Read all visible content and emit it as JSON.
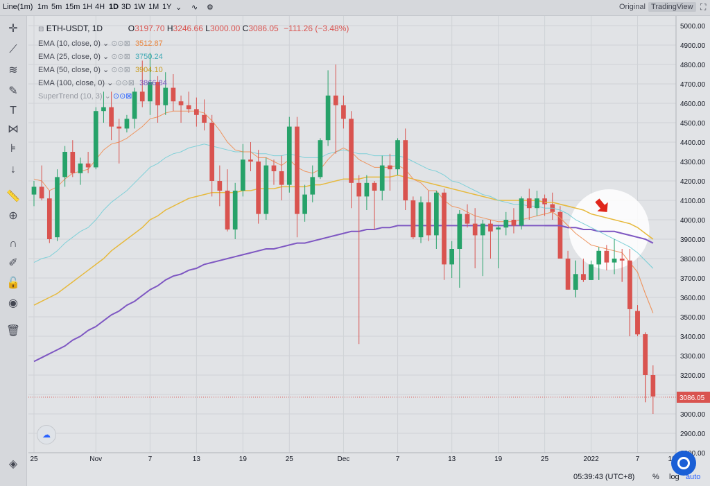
{
  "toolbar": {
    "chart_type": "Line(1m)",
    "timeframes": [
      "1m",
      "5m",
      "15m",
      "1H",
      "4H",
      "1D",
      "3D",
      "1W",
      "1M",
      "1Y"
    ],
    "active_timeframe": "1D",
    "view_original": "Original",
    "view_tradingview": "TradingView"
  },
  "symbol": {
    "name": "ETH-USDT, 1D",
    "open_label": "O",
    "open": "3197.70",
    "high_label": "H",
    "high": "3246.66",
    "low_label": "L",
    "low": "3000.00",
    "close_label": "C",
    "close": "3086.05",
    "change": "−111.26 (−3.48%)"
  },
  "indicators": [
    {
      "label": "EMA (10, close, 0)",
      "value": "3512.87",
      "color": "#e8843c"
    },
    {
      "label": "EMA (25, close, 0)",
      "value": "3750.24",
      "color": "#5cc6d0"
    },
    {
      "label": "EMA (50, close, 0)",
      "value": "3904.10",
      "color": "#e6b93d"
    },
    {
      "label": "EMA (100, close, 0)",
      "value": "3866.84",
      "color": "#7e57c2"
    },
    {
      "label": "SuperTrend (10, 3)",
      "value": "",
      "color": "#9598a1"
    }
  ],
  "price_axis": {
    "ticks": [
      "5000.00",
      "4900.00",
      "4800.00",
      "4700.00",
      "4600.00",
      "4500.00",
      "4400.00",
      "4300.00",
      "4200.00",
      "4100.00",
      "4000.00",
      "3900.00",
      "3800.00",
      "3700.00",
      "3600.00",
      "3500.00",
      "3400.00",
      "3300.00",
      "3200.00",
      "3100.00",
      "3000.00",
      "2900.00",
      "2800.00"
    ],
    "last_price": "3086.05"
  },
  "time_axis": {
    "ticks": [
      "25",
      "Nov",
      "7",
      "13",
      "19",
      "25",
      "Dec",
      "7",
      "13",
      "19",
      "25",
      "2022",
      "7",
      "12"
    ]
  },
  "bottom": {
    "clock": "05:39:43 (UTC+8)",
    "percent": "%",
    "log": "log",
    "auto": "auto"
  },
  "colors": {
    "up": "#26a269",
    "down": "#d9534f",
    "grid": "#cfd2d6",
    "background": "#e1e3e6"
  },
  "chart_data": {
    "type": "candlestick",
    "title": "ETH-USDT, 1D",
    "ylim": [
      2800,
      5050
    ],
    "candles": [
      [
        4130,
        4200,
        4070,
        4170
      ],
      [
        4170,
        4280,
        4100,
        4110
      ],
      [
        4110,
        4150,
        3880,
        3900
      ],
      [
        3910,
        4260,
        3890,
        4220
      ],
      [
        4220,
        4380,
        4170,
        4350
      ],
      [
        4350,
        4410,
        4220,
        4240
      ],
      [
        4240,
        4320,
        4180,
        4290
      ],
      [
        4290,
        4350,
        4240,
        4270
      ],
      [
        4270,
        4580,
        4260,
        4560
      ],
      [
        4560,
        4660,
        4500,
        4580
      ],
      [
        4580,
        4660,
        4410,
        4480
      ],
      [
        4480,
        4520,
        4290,
        4470
      ],
      [
        4470,
        4540,
        4450,
        4520
      ],
      [
        4520,
        4680,
        4470,
        4660
      ],
      [
        4660,
        4820,
        4580,
        4610
      ],
      [
        4610,
        4860,
        4540,
        4710
      ],
      [
        4710,
        4740,
        4500,
        4590
      ],
      [
        4590,
        4760,
        4540,
        4680
      ],
      [
        4680,
        4750,
        4560,
        4610
      ],
      [
        4610,
        4640,
        4500,
        4590
      ],
      [
        4590,
        4660,
        4550,
        4570
      ],
      [
        4570,
        4630,
        4480,
        4540
      ],
      [
        4540,
        4620,
        4460,
        4500
      ],
      [
        4500,
        4540,
        4120,
        4200
      ],
      [
        4200,
        4280,
        4070,
        4150
      ],
      [
        4150,
        4260,
        3940,
        3950
      ],
      [
        3950,
        4190,
        3900,
        4150
      ],
      [
        4150,
        4390,
        4120,
        4310
      ],
      [
        4310,
        4400,
        4250,
        4300
      ],
      [
        4300,
        4360,
        3980,
        4030
      ],
      [
        4030,
        4320,
        4000,
        4280
      ],
      [
        4280,
        4310,
        4180,
        4250
      ],
      [
        4250,
        4330,
        4100,
        4180
      ],
      [
        4180,
        4530,
        4140,
        4480
      ],
      [
        4480,
        4530,
        3910,
        4030
      ],
      [
        4030,
        4180,
        3990,
        4130
      ],
      [
        4130,
        4280,
        4090,
        4220
      ],
      [
        4220,
        4420,
        4210,
        4410
      ],
      [
        4410,
        4770,
        4380,
        4640
      ],
      [
        4640,
        4800,
        4340,
        4590
      ],
      [
        4590,
        4640,
        4470,
        4520
      ],
      [
        4520,
        4560,
        4060,
        4190
      ],
      [
        4190,
        4230,
        3360,
        4120
      ],
      [
        4120,
        4230,
        4050,
        4190
      ],
      [
        4190,
        4200,
        3950,
        4150
      ],
      [
        4150,
        4330,
        4100,
        4280
      ],
      [
        4280,
        4340,
        4150,
        4260
      ],
      [
        4260,
        4420,
        4230,
        4410
      ],
      [
        4410,
        4470,
        4050,
        4100
      ],
      [
        4100,
        4120,
        3900,
        3910
      ],
      [
        3910,
        4120,
        3880,
        4090
      ],
      [
        4090,
        4150,
        3890,
        3920
      ],
      [
        3920,
        4150,
        3850,
        4140
      ],
      [
        4140,
        4160,
        3690,
        3770
      ],
      [
        3770,
        3890,
        3700,
        3850
      ],
      [
        3850,
        4050,
        3650,
        4030
      ],
      [
        4030,
        4080,
        3960,
        3980
      ],
      [
        3980,
        4060,
        3750,
        3920
      ],
      [
        3920,
        4000,
        3710,
        3980
      ],
      [
        3980,
        4000,
        3800,
        3940
      ],
      [
        3950,
        3970,
        3750,
        3960
      ],
      [
        3960,
        4040,
        3920,
        4000
      ],
      [
        4000,
        4060,
        3930,
        3970
      ],
      [
        3970,
        4120,
        3950,
        4110
      ],
      [
        4110,
        4160,
        4000,
        4060
      ],
      [
        4060,
        4150,
        4020,
        4110
      ],
      [
        4110,
        4130,
        4020,
        4080
      ],
      [
        4080,
        4140,
        4000,
        4040
      ],
      [
        4040,
        4070,
        3800,
        3800
      ],
      [
        3800,
        3840,
        3640,
        3640
      ],
      [
        3640,
        3790,
        3600,
        3720
      ],
      [
        3720,
        3800,
        3680,
        3690
      ],
      [
        3690,
        3790,
        3690,
        3770
      ],
      [
        3770,
        3860,
        3690,
        3840
      ],
      [
        3840,
        3870,
        3740,
        3780
      ],
      [
        3780,
        3900,
        3720,
        3800
      ],
      [
        3800,
        3850,
        3680,
        3790
      ],
      [
        3790,
        3850,
        3400,
        3540
      ],
      [
        3530,
        3560,
        3400,
        3410
      ],
      [
        3410,
        3420,
        3060,
        3200
      ],
      [
        3200,
        3250,
        3000,
        3090
      ]
    ],
    "ema10": [
      4210,
      4200,
      4150,
      4170,
      4210,
      4240,
      4250,
      4260,
      4310,
      4360,
      4390,
      4400,
      4420,
      4450,
      4480,
      4520,
      4530,
      4550,
      4560,
      4560,
      4560,
      4560,
      4550,
      4510,
      4460,
      4400,
      4360,
      4350,
      4350,
      4320,
      4320,
      4300,
      4280,
      4310,
      4270,
      4250,
      4240,
      4260,
      4310,
      4350,
      4370,
      4350,
      4310,
      4290,
      4270,
      4270,
      4270,
      4280,
      4260,
      4210,
      4190,
      4150,
      4150,
      4100,
      4070,
      4060,
      4040,
      4020,
      4010,
      4000,
      3990,
      3990,
      3990,
      4000,
      4010,
      4020,
      4030,
      4040,
      4010,
      3970,
      3930,
      3900,
      3870,
      3860,
      3850,
      3840,
      3830,
      3780,
      3730,
      3620,
      3520
    ],
    "ema25": [
      3780,
      3800,
      3810,
      3840,
      3880,
      3910,
      3940,
      3960,
      4000,
      4050,
      4090,
      4120,
      4150,
      4190,
      4230,
      4270,
      4290,
      4320,
      4340,
      4350,
      4370,
      4380,
      4390,
      4380,
      4370,
      4360,
      4350,
      4350,
      4350,
      4340,
      4340,
      4330,
      4330,
      4340,
      4330,
      4320,
      4320,
      4320,
      4340,
      4350,
      4360,
      4350,
      4340,
      4340,
      4330,
      4330,
      4330,
      4330,
      4320,
      4300,
      4280,
      4260,
      4250,
      4230,
      4200,
      4190,
      4170,
      4150,
      4130,
      4120,
      4100,
      4090,
      4080,
      4080,
      4070,
      4070,
      4060,
      4060,
      4050,
      4030,
      4000,
      3980,
      3960,
      3940,
      3920,
      3900,
      3880,
      3860,
      3830,
      3790,
      3750
    ],
    "ema50": [
      3560,
      3580,
      3600,
      3620,
      3650,
      3680,
      3710,
      3740,
      3770,
      3800,
      3840,
      3870,
      3900,
      3930,
      3960,
      4000,
      4020,
      4050,
      4070,
      4090,
      4110,
      4120,
      4130,
      4140,
      4140,
      4140,
      4140,
      4150,
      4150,
      4160,
      4160,
      4160,
      4170,
      4170,
      4170,
      4170,
      4180,
      4180,
      4190,
      4200,
      4210,
      4210,
      4210,
      4220,
      4220,
      4220,
      4220,
      4230,
      4220,
      4210,
      4200,
      4190,
      4180,
      4170,
      4160,
      4150,
      4140,
      4130,
      4120,
      4110,
      4100,
      4100,
      4100,
      4100,
      4100,
      4100,
      4090,
      4090,
      4080,
      4070,
      4060,
      4050,
      4030,
      4020,
      4010,
      4000,
      3990,
      3980,
      3960,
      3930,
      3900
    ],
    "ema100": [
      3270,
      3290,
      3310,
      3330,
      3350,
      3380,
      3400,
      3430,
      3450,
      3480,
      3510,
      3530,
      3560,
      3580,
      3610,
      3640,
      3660,
      3690,
      3710,
      3720,
      3740,
      3750,
      3770,
      3780,
      3790,
      3800,
      3810,
      3820,
      3830,
      3840,
      3850,
      3850,
      3860,
      3870,
      3880,
      3880,
      3890,
      3900,
      3910,
      3920,
      3930,
      3940,
      3940,
      3950,
      3950,
      3960,
      3960,
      3970,
      3970,
      3970,
      3970,
      3970,
      3970,
      3970,
      3970,
      3970,
      3970,
      3970,
      3970,
      3970,
      3970,
      3970,
      3970,
      3970,
      3970,
      3970,
      3970,
      3970,
      3970,
      3960,
      3960,
      3950,
      3950,
      3940,
      3940,
      3940,
      3930,
      3920,
      3910,
      3900,
      3880
    ]
  },
  "annotation": {
    "arrow_label": "down-arrow"
  }
}
